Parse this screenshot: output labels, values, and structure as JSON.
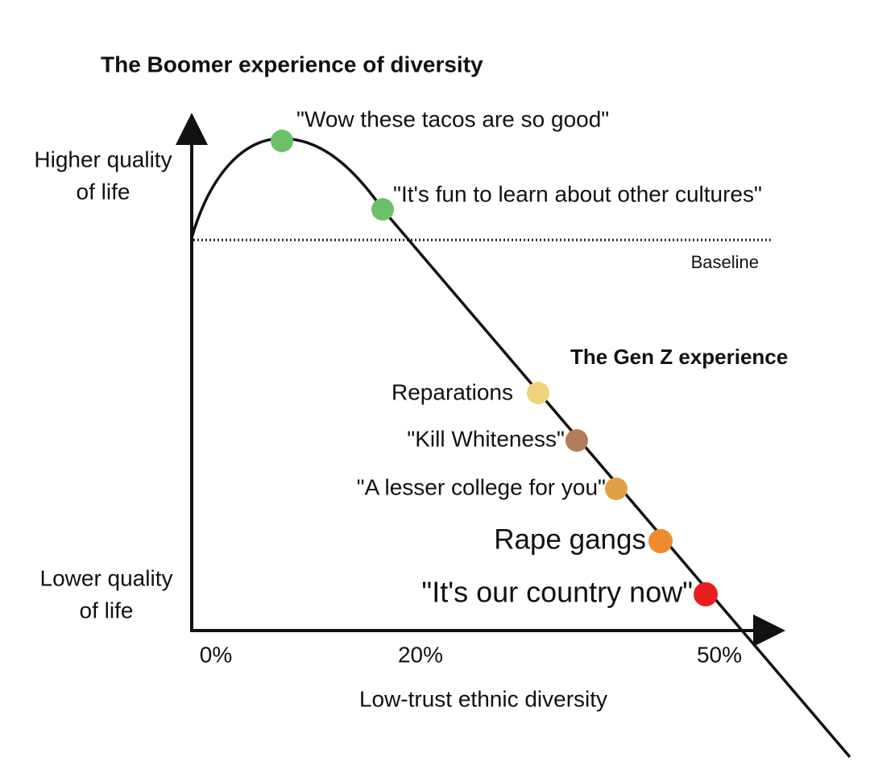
{
  "title": "The Boomer experience of diversity",
  "y_axis": {
    "top_label": [
      "Higher quality",
      "of life"
    ],
    "bottom_label": [
      "Lower quality",
      "of life"
    ]
  },
  "x_axis": {
    "label": "Low-trust ethnic diversity",
    "ticks": [
      "0%",
      "20%",
      "50%"
    ]
  },
  "baseline_label": "Baseline",
  "boomer_points": [
    "\"Wow these tacos are so good\"",
    "\"It's fun to learn about other cultures\""
  ],
  "genz_title": "The Gen Z experience",
  "genz_points": [
    "Reparations",
    "\"Kill Whiteness\"",
    "\"A lesser college for you\"",
    "Rape gangs",
    "\"It's our country now\""
  ]
}
